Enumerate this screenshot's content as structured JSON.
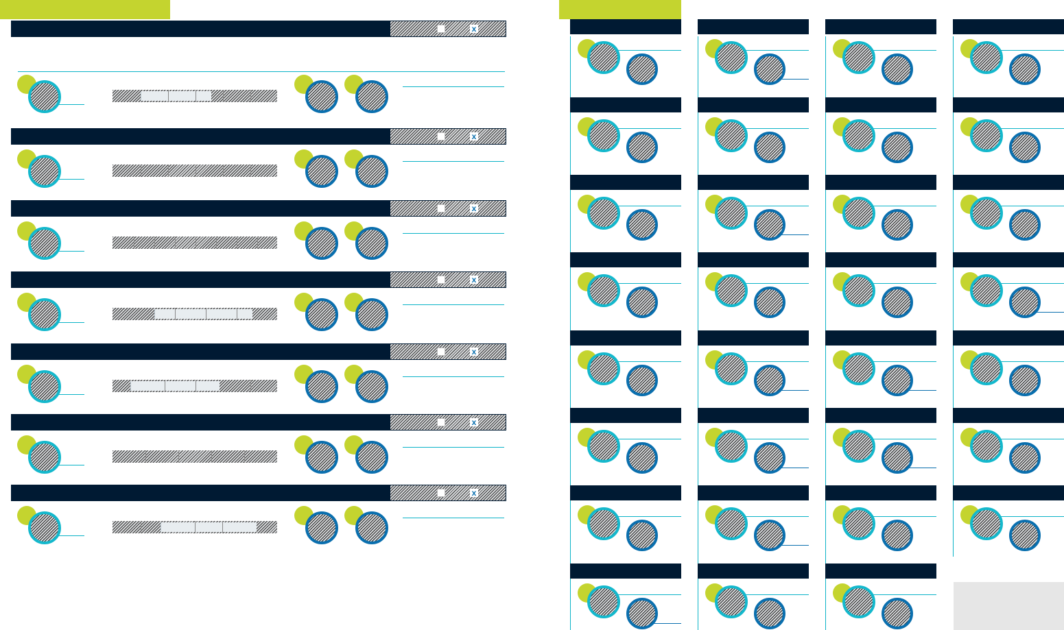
{
  "colors": {
    "accent_green": "#c4d42f",
    "navy": "#001a33",
    "teal": "#14b8cc",
    "blue": "#0a6fae",
    "line": "#0ab3c7"
  },
  "icons": {
    "close": "close-icon",
    "checkbox": "checkbox-icon"
  },
  "left_panel": {
    "close_glyph": "x",
    "row_count": 7
  },
  "right_panel": {
    "tile_count": 31
  }
}
